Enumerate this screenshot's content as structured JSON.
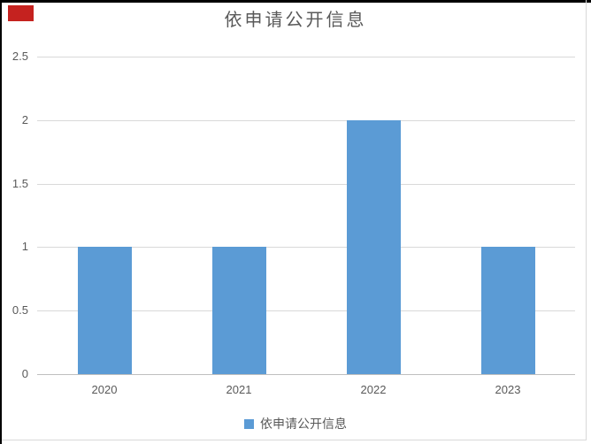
{
  "overlay": {
    "marker_color": "#c5221f"
  },
  "window": {
    "border_color": "#000000",
    "chart_border_color": "#d9d9d9"
  },
  "chart_data": {
    "type": "bar",
    "title": "依申请公开信息",
    "categories": [
      "2020",
      "2021",
      "2022",
      "2023"
    ],
    "values": [
      1,
      1,
      2,
      1
    ],
    "series_name": "依申请公开信息",
    "xlabel": "",
    "ylabel": "",
    "ylim": [
      0,
      2.5
    ],
    "yticks": [
      0,
      0.5,
      1,
      1.5,
      2,
      2.5
    ],
    "ytick_labels": [
      "0",
      "0.5",
      "1",
      "1.5",
      "2",
      "2.5"
    ],
    "grid": true,
    "legend_position": "bottom",
    "bar_color": "#5b9bd5",
    "gridline_color": "#d9d9d9",
    "axis_line_color": "#bfbfbf",
    "text_color": "#595959"
  }
}
